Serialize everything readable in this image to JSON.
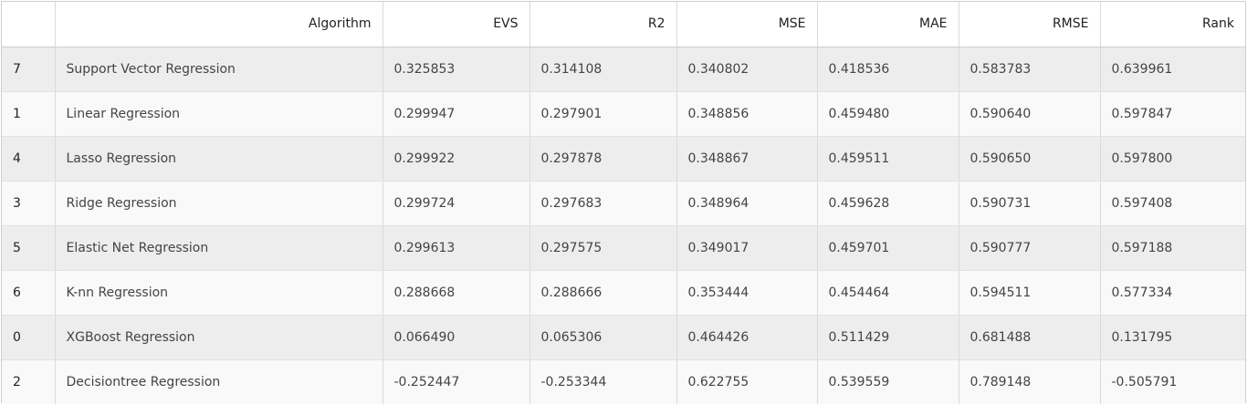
{
  "table": {
    "columns": [
      "",
      "Algorithm",
      "EVS",
      "R2",
      "MSE",
      "MAE",
      "RMSE",
      "Rank"
    ],
    "rows": [
      [
        "7",
        "Support Vector Regression",
        "0.325853",
        "0.314108",
        "0.340802",
        "0.418536",
        "0.583783",
        "0.639961"
      ],
      [
        "1",
        "Linear Regression",
        "0.299947",
        "0.297901",
        "0.348856",
        "0.459480",
        "0.590640",
        "0.597847"
      ],
      [
        "4",
        "Lasso Regression",
        "0.299922",
        "0.297878",
        "0.348867",
        "0.459511",
        "0.590650",
        "0.597800"
      ],
      [
        "3",
        "Ridge Regression",
        "0.299724",
        "0.297683",
        "0.348964",
        "0.459628",
        "0.590731",
        "0.597408"
      ],
      [
        "5",
        "Elastic Net Regression",
        "0.299613",
        "0.297575",
        "0.349017",
        "0.459701",
        "0.590777",
        "0.597188"
      ],
      [
        "6",
        "K-nn Regression",
        "0.288668",
        "0.288666",
        "0.353444",
        "0.454464",
        "0.594511",
        "0.577334"
      ],
      [
        "0",
        "XGBoost Regression",
        "0.066490",
        "0.065306",
        "0.464426",
        "0.511429",
        "0.681488",
        "0.131795"
      ],
      [
        "2",
        "Decisiontree Regression",
        "-0.252447",
        "-0.253344",
        "0.622755",
        "0.539559",
        "0.789148",
        "-0.505791"
      ]
    ]
  }
}
